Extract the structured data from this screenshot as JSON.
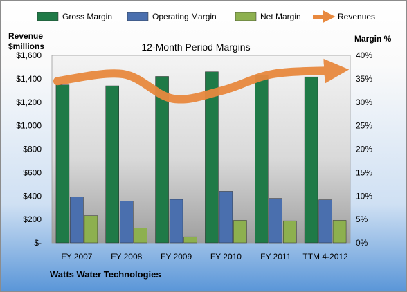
{
  "chart_data": {
    "type": "bar",
    "title": "12-Month Period Margins",
    "categories": [
      "FY 2007",
      "FY 2008",
      "FY 2009",
      "FY 2010",
      "FY 2011",
      "TTM 4-2012"
    ],
    "series": [
      {
        "name": "Gross Margin",
        "axis": "right",
        "unit": "%",
        "color": "#1f7a47",
        "values": [
          33.7,
          33.5,
          35.5,
          36.5,
          35.8,
          35.4
        ]
      },
      {
        "name": "Operating Margin",
        "axis": "right",
        "unit": "%",
        "color": "#4a6fae",
        "values": [
          9.8,
          8.9,
          9.3,
          11.0,
          9.5,
          9.2
        ]
      },
      {
        "name": "Net Margin",
        "axis": "right",
        "unit": "%",
        "color": "#8db04f",
        "values": [
          5.8,
          3.2,
          1.3,
          4.8,
          4.7,
          4.8
        ]
      }
    ],
    "revenues": {
      "name": "Revenues",
      "axis": "left",
      "color": "#e8893f",
      "style": "arrow",
      "values": [
        1380,
        1440,
        1230,
        1300,
        1440,
        1470
      ]
    },
    "y_left": {
      "label_lines": [
        "Revenue",
        "$millions"
      ],
      "ylim": [
        0,
        1600
      ],
      "ticks": [
        "$-",
        "$200",
        "$400",
        "$600",
        "$800",
        "$1,000",
        "$1,200",
        "$1,400",
        "$1,600"
      ]
    },
    "y_right": {
      "label": "Margin %",
      "ylim": [
        0,
        40
      ],
      "ticks": [
        "0%",
        "5%",
        "10%",
        "15%",
        "20%",
        "25%",
        "30%",
        "35%",
        "40%"
      ]
    },
    "legend": {
      "placement": "top",
      "items": [
        "Gross Margin",
        "Operating Margin",
        "Net Margin",
        "Revenues"
      ]
    },
    "grid": false,
    "footer": "Watts Water Technologies"
  }
}
